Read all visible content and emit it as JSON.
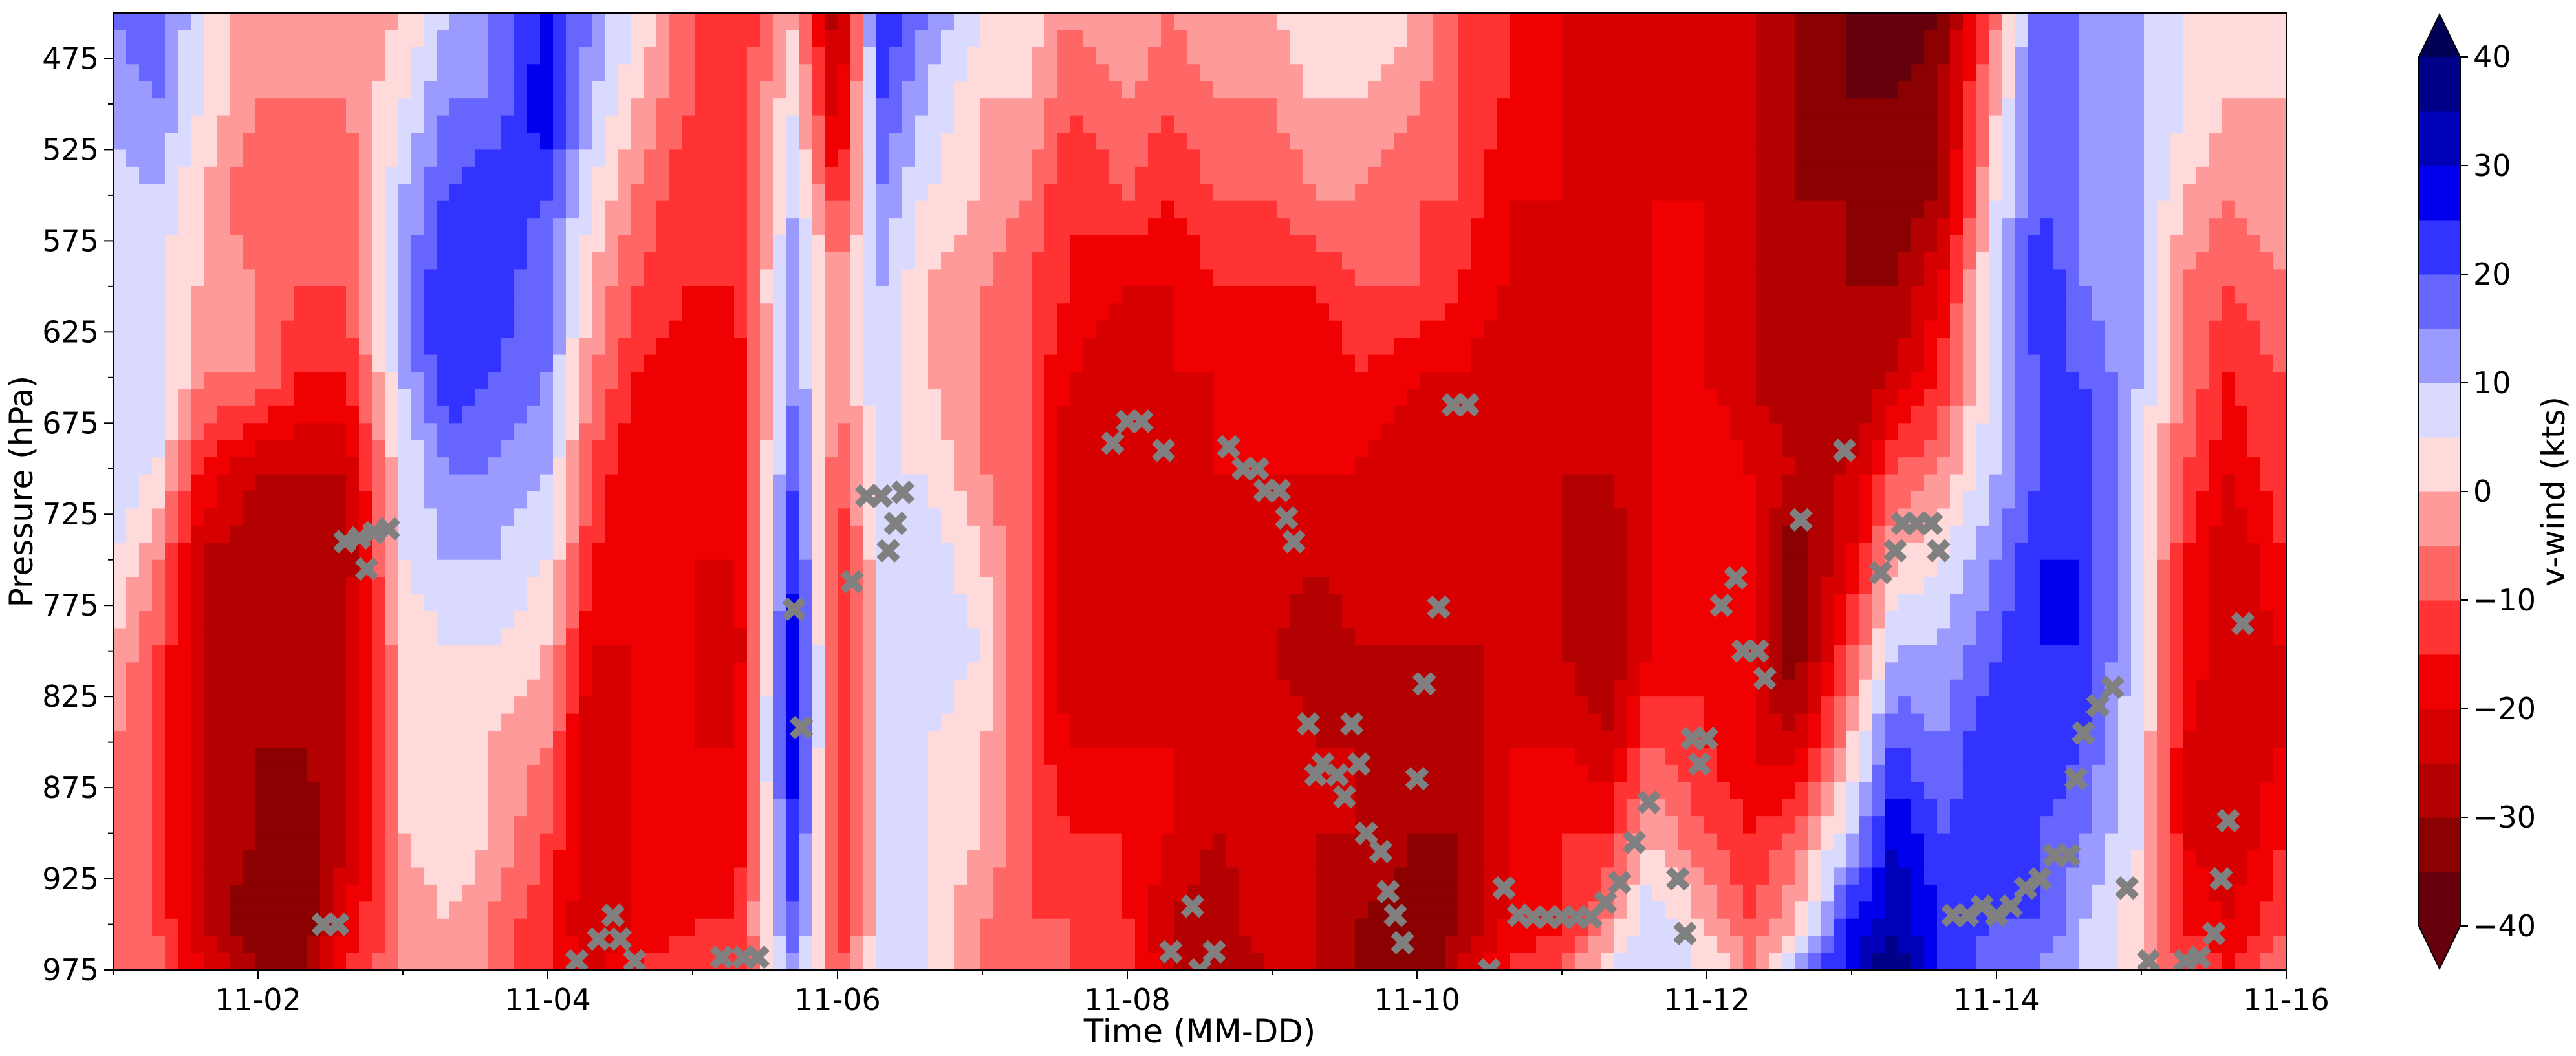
{
  "chart_data": {
    "type": "heatmap",
    "subtype": "filled-contour time-height section",
    "xlabel": "Time (MM-DD)",
    "ylabel": "Pressure (hPa)",
    "x_ticks": [
      "11-02",
      "11-04",
      "11-06",
      "11-08",
      "11-10",
      "11-12",
      "11-14",
      "11-16"
    ],
    "x_range": [
      "11-01",
      "11-16"
    ],
    "y_ticks": [
      475,
      525,
      575,
      625,
      675,
      725,
      775,
      825,
      875,
      925,
      975
    ],
    "y_range": [
      450,
      975
    ],
    "y_inverted": true,
    "colorbar": {
      "label": "v-wind (kts)",
      "tick_labels": [
        "40",
        "30",
        "20",
        "10",
        "0",
        "−10",
        "−20",
        "−30",
        "−40"
      ],
      "tick_values": [
        40,
        30,
        20,
        10,
        0,
        -10,
        -20,
        -30,
        -40
      ],
      "extend": "both",
      "levels": [
        -40,
        -35,
        -30,
        -25,
        -20,
        -15,
        -10,
        -5,
        0,
        5,
        10,
        15,
        20,
        25,
        30,
        35,
        40
      ],
      "colors": [
        "#67000d",
        "#8b0000",
        "#b30000",
        "#d60000",
        "#f00000",
        "#ff3333",
        "#ff6666",
        "#ff9a9a",
        "#ffdada",
        "#dadaff",
        "#9a9aff",
        "#6666ff",
        "#3333ff",
        "#0000ee",
        "#0000b8",
        "#000088",
        "#000055"
      ],
      "under_color": "#67000d",
      "over_color": "#000055"
    },
    "v_wind_columns": {
      "description": "Approximate v-wind (kts) at pressure levels for each time sample",
      "pressure_levels": [
        450,
        500,
        550,
        600,
        650,
        700,
        750,
        800,
        850,
        900,
        950,
        975
      ],
      "time_days": [
        1.0,
        1.3,
        1.6,
        2.0,
        2.3,
        2.6,
        3.0,
        3.3,
        3.6,
        4.0,
        4.3,
        4.6,
        5.0,
        5.3,
        5.7,
        6.0,
        6.3,
        6.6,
        7.0,
        7.3,
        7.6,
        8.0,
        8.3,
        8.6,
        9.0,
        9.3,
        9.6,
        10.0,
        10.3,
        10.6,
        11.0,
        11.3,
        11.6,
        12.0,
        12.3,
        12.6,
        13.0,
        13.3,
        13.6,
        14.0,
        14.3,
        14.6,
        15.0,
        15.3,
        15.6,
        16.0
      ],
      "values": [
        [
          15,
          12,
          8,
          5,
          10,
          10,
          5,
          0,
          -5,
          -5,
          -5,
          -5
        ],
        [
          20,
          15,
          10,
          5,
          10,
          5,
          -5,
          -10,
          -10,
          -10,
          -10,
          -5
        ],
        [
          5,
          5,
          0,
          0,
          -5,
          -15,
          -25,
          -25,
          -25,
          -25,
          -25,
          -20
        ],
        [
          -5,
          -5,
          -10,
          -5,
          -5,
          -25,
          -30,
          -30,
          -30,
          -30,
          -35,
          -30
        ],
        [
          -5,
          -5,
          -5,
          -10,
          -15,
          -25,
          -30,
          -30,
          -30,
          -35,
          -35,
          -30
        ],
        [
          -5,
          -5,
          -10,
          -10,
          -15,
          -25,
          -30,
          -25,
          -25,
          -25,
          -20,
          -15
        ],
        [
          0,
          5,
          10,
          15,
          10,
          5,
          5,
          0,
          0,
          0,
          -5,
          -5
        ],
        [
          10,
          15,
          20,
          25,
          25,
          15,
          10,
          5,
          5,
          5,
          0,
          0
        ],
        [
          15,
          15,
          25,
          25,
          20,
          15,
          10,
          5,
          0,
          0,
          -5,
          -5
        ],
        [
          25,
          30,
          20,
          15,
          15,
          10,
          5,
          0,
          -5,
          -10,
          -15,
          -15
        ],
        [
          15,
          10,
          5,
          0,
          -5,
          -10,
          -15,
          -20,
          -25,
          -25,
          -25,
          -20
        ],
        [
          5,
          0,
          -5,
          -10,
          -15,
          -20,
          -20,
          -20,
          -20,
          -20,
          -20,
          -15
        ],
        [
          -10,
          -10,
          -15,
          -15,
          -20,
          -20,
          -20,
          -20,
          -20,
          -15,
          -15,
          -10
        ],
        [
          -15,
          -15,
          -15,
          -15,
          -20,
          -20,
          -20,
          -25,
          -20,
          -20,
          -15,
          -15
        ],
        [
          0,
          5,
          10,
          15,
          15,
          20,
          25,
          30,
          30,
          25,
          20,
          15
        ],
        [
          -30,
          -25,
          -15,
          -5,
          -5,
          -10,
          -15,
          -15,
          -15,
          -15,
          -15,
          -10
        ],
        [
          25,
          20,
          15,
          10,
          10,
          5,
          5,
          5,
          5,
          5,
          5,
          5
        ],
        [
          15,
          10,
          5,
          0,
          0,
          5,
          10,
          10,
          5,
          5,
          5,
          5
        ],
        [
          5,
          0,
          0,
          -5,
          -5,
          -5,
          0,
          5,
          0,
          0,
          -5,
          -5
        ],
        [
          5,
          0,
          -5,
          -10,
          -10,
          -10,
          -10,
          -10,
          -10,
          -10,
          -10,
          -10
        ],
        [
          -5,
          -10,
          -15,
          -15,
          -20,
          -25,
          -25,
          -25,
          -20,
          -15,
          -10,
          -10
        ],
        [
          0,
          -5,
          -10,
          -20,
          -25,
          -25,
          -25,
          -20,
          -20,
          -15,
          -15,
          -10
        ],
        [
          -5,
          -10,
          -15,
          -20,
          -20,
          -25,
          -25,
          -25,
          -20,
          -20,
          -25,
          -25
        ],
        [
          0,
          -5,
          -10,
          -15,
          -20,
          -20,
          -25,
          -25,
          -25,
          -25,
          -30,
          -30
        ],
        [
          0,
          -5,
          -10,
          -15,
          -15,
          -20,
          -20,
          -25,
          -20,
          -20,
          -20,
          -25
        ],
        [
          5,
          0,
          -5,
          -15,
          -20,
          -20,
          -25,
          -30,
          -25,
          -25,
          -25,
          -25
        ],
        [
          5,
          0,
          -5,
          -10,
          -15,
          -20,
          -20,
          -25,
          -25,
          -25,
          -30,
          -30
        ],
        [
          0,
          -5,
          -10,
          -10,
          -20,
          -25,
          -25,
          -25,
          -30,
          -30,
          -35,
          -35
        ],
        [
          -10,
          -10,
          -10,
          -15,
          -20,
          -25,
          -25,
          -25,
          -30,
          -30,
          -30,
          -25
        ],
        [
          -15,
          -15,
          -20,
          -20,
          -25,
          -25,
          -25,
          -25,
          -20,
          -20,
          -20,
          -15
        ],
        [
          -20,
          -20,
          -20,
          -25,
          -25,
          -25,
          -25,
          -25,
          -20,
          -15,
          -15,
          -10
        ],
        [
          -25,
          -25,
          -25,
          -25,
          -25,
          -25,
          -30,
          -30,
          -25,
          -15,
          -5,
          5
        ],
        [
          -25,
          -25,
          -20,
          -20,
          -20,
          -20,
          -20,
          -20,
          -10,
          0,
          10,
          10
        ],
        [
          -25,
          -20,
          -20,
          -20,
          -20,
          -15,
          -15,
          -15,
          -15,
          -10,
          0,
          5
        ],
        [
          -25,
          -25,
          -25,
          -25,
          -25,
          -20,
          -20,
          -20,
          -20,
          -15,
          -10,
          -5
        ],
        [
          -30,
          -30,
          -30,
          -30,
          -30,
          -25,
          -35,
          -35,
          -25,
          -10,
          0,
          10
        ],
        [
          -35,
          -35,
          -30,
          -30,
          -30,
          -25,
          -20,
          -10,
          0,
          10,
          25,
          30
        ],
        [
          -40,
          -35,
          -35,
          -30,
          -25,
          -10,
          0,
          10,
          20,
          30,
          35,
          40
        ],
        [
          -35,
          -30,
          -30,
          -20,
          -15,
          -5,
          5,
          10,
          15,
          20,
          25,
          25
        ],
        [
          -5,
          0,
          5,
          10,
          10,
          10,
          15,
          20,
          25,
          25,
          20,
          15
        ],
        [
          20,
          20,
          20,
          25,
          20,
          20,
          25,
          25,
          25,
          20,
          20,
          15
        ],
        [
          15,
          15,
          15,
          15,
          20,
          25,
          25,
          25,
          20,
          15,
          10,
          10
        ],
        [
          10,
          10,
          10,
          10,
          10,
          5,
          5,
          5,
          5,
          5,
          0,
          0
        ],
        [
          5,
          5,
          0,
          -5,
          -5,
          -10,
          -15,
          -15,
          -20,
          -20,
          -15,
          -10
        ],
        [
          0,
          0,
          -5,
          -10,
          -15,
          -20,
          -25,
          -25,
          -25,
          -25,
          -20,
          -15
        ],
        [
          0,
          0,
          0,
          -5,
          -10,
          -10,
          -15,
          -20,
          -20,
          -15,
          -10,
          -5
        ]
      ]
    },
    "markers": {
      "symbol": "x",
      "color": "#808080",
      "description": "Gray X markers (approximate time in days of November, pressure in hPa)",
      "points": [
        [
          2.45,
          950
        ],
        [
          2.55,
          950
        ],
        [
          2.6,
          740
        ],
        [
          2.7,
          738
        ],
        [
          2.8,
          735
        ],
        [
          2.9,
          733
        ],
        [
          2.75,
          755
        ],
        [
          4.2,
          970
        ],
        [
          4.35,
          958
        ],
        [
          4.45,
          945
        ],
        [
          4.5,
          958
        ],
        [
          4.6,
          970
        ],
        [
          5.2,
          968
        ],
        [
          5.35,
          968
        ],
        [
          5.45,
          968
        ],
        [
          5.7,
          777
        ],
        [
          5.75,
          842
        ],
        [
          6.1,
          762
        ],
        [
          6.2,
          715
        ],
        [
          6.3,
          715
        ],
        [
          6.35,
          745
        ],
        [
          6.4,
          730
        ],
        [
          6.45,
          713
        ],
        [
          7.9,
          686
        ],
        [
          8.0,
          674
        ],
        [
          8.1,
          674
        ],
        [
          8.25,
          690
        ],
        [
          8.45,
          940
        ],
        [
          8.3,
          965
        ],
        [
          8.5,
          975
        ],
        [
          8.6,
          965
        ],
        [
          8.7,
          688
        ],
        [
          8.8,
          700
        ],
        [
          8.9,
          700
        ],
        [
          8.95,
          712
        ],
        [
          9.05,
          712
        ],
        [
          9.1,
          727
        ],
        [
          9.15,
          740
        ],
        [
          9.25,
          840
        ],
        [
          9.3,
          868
        ],
        [
          9.35,
          862
        ],
        [
          9.45,
          868
        ],
        [
          9.5,
          880
        ],
        [
          9.6,
          862
        ],
        [
          9.55,
          840
        ],
        [
          9.65,
          900
        ],
        [
          9.75,
          910
        ],
        [
          9.8,
          932
        ],
        [
          9.85,
          945
        ],
        [
          9.9,
          960
        ],
        [
          10.0,
          870
        ],
        [
          10.05,
          818
        ],
        [
          10.15,
          776
        ],
        [
          10.25,
          665
        ],
        [
          10.35,
          665
        ],
        [
          10.6,
          930
        ],
        [
          10.7,
          945
        ],
        [
          10.8,
          946
        ],
        [
          10.9,
          946
        ],
        [
          11.0,
          946
        ],
        [
          11.1,
          946
        ],
        [
          11.2,
          946
        ],
        [
          11.3,
          938
        ],
        [
          11.4,
          927
        ],
        [
          11.5,
          905
        ],
        [
          11.6,
          883
        ],
        [
          10.5,
          975
        ],
        [
          11.8,
          925
        ],
        [
          11.85,
          955
        ],
        [
          11.9,
          848
        ],
        [
          11.95,
          862
        ],
        [
          12.0,
          848
        ],
        [
          12.1,
          775
        ],
        [
          12.2,
          760
        ],
        [
          12.25,
          800
        ],
        [
          12.35,
          800
        ],
        [
          12.4,
          815
        ],
        [
          12.65,
          728
        ],
        [
          12.95,
          690
        ],
        [
          13.2,
          757
        ],
        [
          13.3,
          745
        ],
        [
          13.35,
          730
        ],
        [
          13.45,
          730
        ],
        [
          13.55,
          730
        ],
        [
          13.6,
          745
        ],
        [
          13.7,
          945
        ],
        [
          13.8,
          945
        ],
        [
          13.9,
          940
        ],
        [
          14.0,
          945
        ],
        [
          14.1,
          940
        ],
        [
          14.2,
          930
        ],
        [
          14.3,
          925
        ],
        [
          14.4,
          912
        ],
        [
          14.5,
          912
        ],
        [
          14.55,
          870
        ],
        [
          14.6,
          845
        ],
        [
          14.7,
          830
        ],
        [
          14.8,
          820
        ],
        [
          14.9,
          930
        ],
        [
          15.05,
          970
        ],
        [
          15.3,
          970
        ],
        [
          15.4,
          968
        ],
        [
          15.5,
          955
        ],
        [
          15.55,
          925
        ],
        [
          15.6,
          893
        ],
        [
          15.7,
          785
        ]
      ]
    }
  }
}
